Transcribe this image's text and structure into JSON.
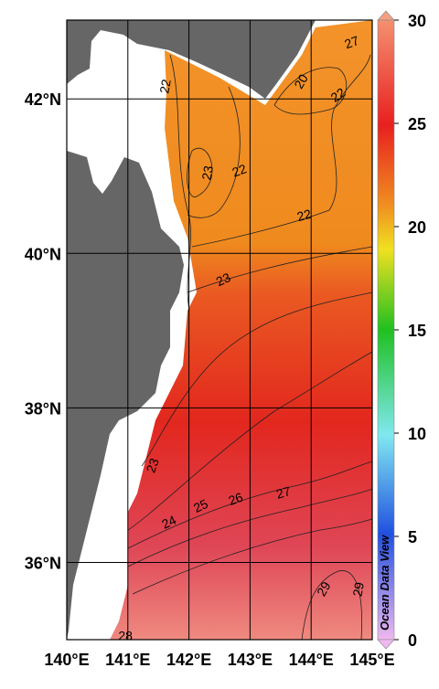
{
  "map": {
    "xlim": [
      140,
      145
    ],
    "ylim": [
      35,
      43.02
    ],
    "lon_ticks": [
      {
        "value": 140,
        "label": "140°E"
      },
      {
        "value": 141,
        "label": "141°E"
      },
      {
        "value": 142,
        "label": "142°E"
      },
      {
        "value": 143,
        "label": "143°E"
      },
      {
        "value": 144,
        "label": "144°E"
      },
      {
        "value": 145,
        "label": "145°E"
      }
    ],
    "lat_ticks": [
      {
        "value": 36,
        "label": "36°N"
      },
      {
        "value": 38,
        "label": "38°N"
      },
      {
        "value": 40,
        "label": "40°N"
      },
      {
        "value": 42,
        "label": "42°N"
      }
    ],
    "colorbar": {
      "lim": [
        0,
        30
      ],
      "ticks": [
        0,
        5,
        10,
        15,
        20,
        25,
        30
      ]
    },
    "watermark": "Ocean Data View",
    "contour_labels": [
      {
        "value": 22,
        "lon": 141.63,
        "lat": 42.16
      },
      {
        "value": 23,
        "lon": 142.32,
        "lat": 41.04
      },
      {
        "value": 22,
        "lon": 142.83,
        "lat": 41.06
      },
      {
        "value": 22,
        "lon": 143.89,
        "lat": 40.48
      },
      {
        "value": 23,
        "lon": 142.57,
        "lat": 39.65
      },
      {
        "value": 20,
        "lon": 143.85,
        "lat": 42.22
      },
      {
        "value": 22,
        "lon": 144.45,
        "lat": 42.04
      },
      {
        "value": 27,
        "lon": 144.67,
        "lat": 42.72
      },
      {
        "value": 23,
        "lon": 141.42,
        "lat": 37.25
      },
      {
        "value": 24,
        "lon": 141.68,
        "lat": 36.51
      },
      {
        "value": 25,
        "lon": 142.2,
        "lat": 36.72
      },
      {
        "value": 26,
        "lon": 142.77,
        "lat": 36.81
      },
      {
        "value": 27,
        "lon": 143.55,
        "lat": 36.89
      },
      {
        "value": 29,
        "lon": 144.22,
        "lat": 35.65
      },
      {
        "value": 29,
        "lon": 144.79,
        "lat": 35.65
      },
      {
        "value": 28,
        "lon": 140.96,
        "lat": 35.04
      }
    ]
  }
}
